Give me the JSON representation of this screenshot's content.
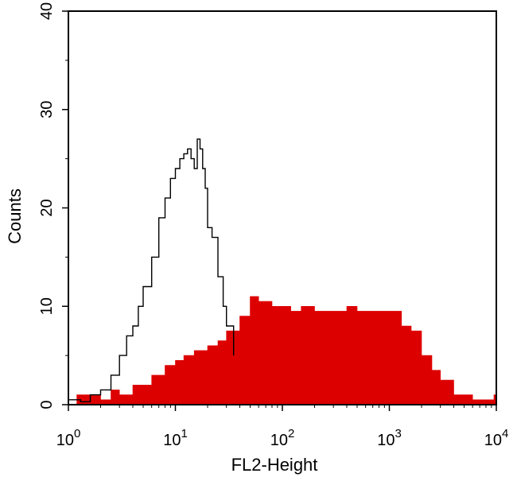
{
  "chart_data": {
    "type": "area",
    "xlabel": "FL2-Height",
    "ylabel": "Counts",
    "x_scale": "log",
    "xlim": [
      1,
      10000
    ],
    "ylim": [
      0,
      40
    ],
    "grid": false,
    "legend": "none",
    "x_ticks": [
      {
        "base": "10",
        "exp": "0",
        "value": 1
      },
      {
        "base": "10",
        "exp": "1",
        "value": 10
      },
      {
        "base": "10",
        "exp": "2",
        "value": 100
      },
      {
        "base": "10",
        "exp": "3",
        "value": 1000
      },
      {
        "base": "10",
        "exp": "4",
        "value": 10000
      }
    ],
    "y_ticks": [
      {
        "label": "0",
        "value": 0
      },
      {
        "label": "10",
        "value": 10
      },
      {
        "label": "20",
        "value": 20
      },
      {
        "label": "30",
        "value": 30
      },
      {
        "label": "40",
        "value": 40
      }
    ],
    "series": [
      {
        "style": "filled",
        "color": "#dd0000",
        "x": [
          1,
          1.2,
          1.5,
          2,
          2.5,
          3,
          4,
          5,
          6,
          8,
          10,
          12,
          15,
          20,
          25,
          30,
          40,
          50,
          60,
          80,
          100,
          120,
          150,
          200,
          300,
          400,
          500,
          600,
          800,
          1000,
          1300,
          1600,
          2000,
          2500,
          3000,
          4000,
          5000,
          6000,
          8000,
          9500,
          10000
        ],
        "y": [
          0,
          1,
          1,
          0.5,
          1.5,
          1,
          2,
          2,
          3,
          4,
          4.5,
          5,
          5.5,
          6,
          6.5,
          7.5,
          9,
          11,
          10.5,
          10,
          10,
          9.5,
          10,
          9.5,
          9.5,
          10,
          9.5,
          9.5,
          9.5,
          9.5,
          8,
          7.5,
          5,
          3.5,
          2.5,
          1,
          1,
          0.5,
          0.5,
          1,
          3
        ]
      },
      {
        "style": "outline",
        "color": "#000000",
        "x": [
          1,
          1.3,
          1.6,
          2,
          2.5,
          3,
          3.5,
          4,
          4.5,
          5,
          6,
          7,
          8,
          9,
          10,
          11,
          12,
          13,
          14,
          15,
          16,
          17,
          18,
          19,
          20,
          22,
          25,
          28,
          30,
          35
        ],
        "y": [
          0.5,
          0.3,
          1,
          1.5,
          3,
          5,
          7,
          8,
          10,
          12,
          15,
          19,
          21,
          23,
          24,
          25,
          25.5,
          26,
          25,
          24,
          27,
          26,
          24,
          22,
          18,
          17,
          13,
          10,
          8,
          5
        ]
      }
    ]
  }
}
